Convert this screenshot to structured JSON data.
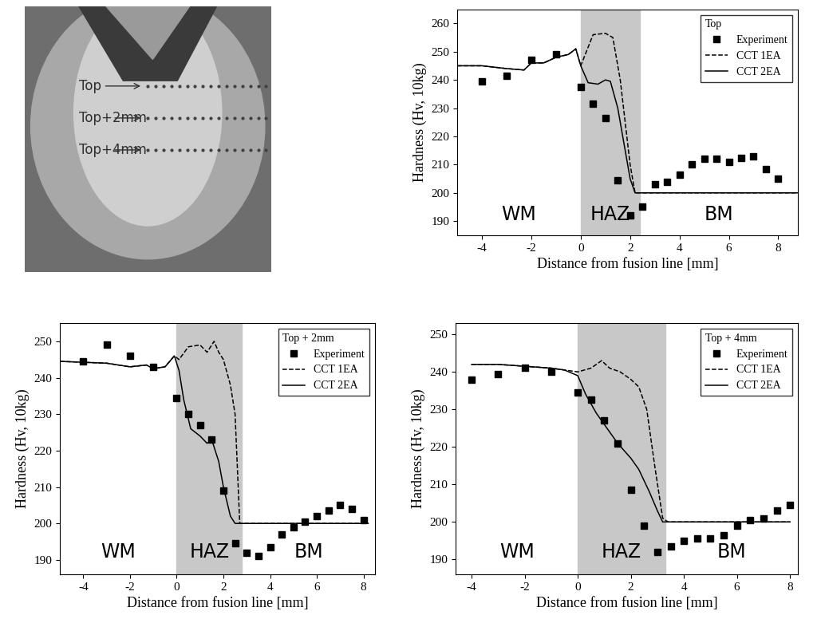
{
  "macrograph": {
    "labels": [
      "Top",
      "Top+2mm",
      "Top+4mm"
    ]
  },
  "chart_data": [
    {
      "type": "line",
      "legend_title": "Top",
      "legend": "upper right",
      "x_label": "Distance from fusion line [mm]",
      "y_label": "Hardness (Hv, 10kg)",
      "annotations": [
        "WM",
        "HAZ",
        "BM"
      ],
      "shaded_range": [
        0,
        2.4
      ],
      "xlim": [
        -5,
        8.8
      ],
      "xticks": [
        -4,
        -2,
        0,
        2,
        4,
        6,
        8
      ],
      "ylim": [
        185,
        265
      ],
      "yticks": [
        190,
        200,
        210,
        220,
        230,
        240,
        250,
        260
      ],
      "grid": false,
      "series": [
        {
          "name": "Experiment",
          "type": "scatter",
          "marker": "square",
          "color": "#000000",
          "x": [
            -4,
            -3,
            -2,
            -1,
            0,
            0.5,
            1,
            1.5,
            2,
            2.5,
            3,
            3.5,
            4,
            4.5,
            5,
            5.5,
            6,
            6.5,
            7,
            7.5,
            8
          ],
          "values": [
            239.5,
            241.5,
            247,
            249,
            237.5,
            231.5,
            226.5,
            204.5,
            192,
            195,
            203,
            204,
            206.5,
            210,
            212,
            212,
            211,
            212.5,
            213,
            208.5,
            205
          ]
        },
        {
          "name": "CCT 1EA",
          "type": "line",
          "line_style": "dashed",
          "color": "#000000",
          "x": [
            -5,
            -4,
            -3,
            -2.3,
            -2,
            -1.5,
            -1,
            -0.5,
            -0.2,
            0,
            0.5,
            1,
            1.3,
            1.6,
            2,
            2.2,
            2.4,
            8.8
          ],
          "values": [
            245,
            245,
            244,
            243.5,
            246,
            246,
            248,
            249,
            251,
            245,
            256,
            256.5,
            255,
            240,
            210,
            200,
            200,
            200
          ]
        },
        {
          "name": "CCT 2EA",
          "type": "line",
          "line_style": "solid",
          "color": "#000000",
          "x": [
            -5,
            -4,
            -3,
            -2.3,
            -2,
            -1.5,
            -1,
            -0.5,
            -0.2,
            0,
            0.3,
            0.7,
            1,
            1.2,
            1.5,
            1.8,
            2,
            2.2,
            8.8
          ],
          "values": [
            245,
            245,
            244,
            243.5,
            246,
            246,
            248,
            249,
            251,
            245,
            239,
            238.5,
            240,
            239.5,
            230,
            215,
            205,
            200,
            200
          ]
        }
      ]
    },
    {
      "type": "line",
      "legend_title": "Top + 2mm",
      "legend": "upper right",
      "x_label": "Distance from fusion line [mm]",
      "y_label": "Hardness (Hv, 10kg)",
      "annotations": [
        "WM",
        "HAZ",
        "BM"
      ],
      "shaded_range": [
        0,
        2.8
      ],
      "xlim": [
        -5,
        8.5
      ],
      "xticks": [
        -4,
        -2,
        0,
        2,
        4,
        6,
        8
      ],
      "ylim": [
        186,
        255
      ],
      "yticks": [
        190,
        200,
        210,
        220,
        230,
        240,
        250
      ],
      "grid": false,
      "series": [
        {
          "name": "Experiment",
          "type": "scatter",
          "marker": "square",
          "color": "#000000",
          "x": [
            -4,
            -3,
            -2,
            -1,
            0,
            0.5,
            1,
            1.5,
            2,
            2.5,
            3,
            3.5,
            4,
            4.5,
            5,
            5.5,
            6,
            6.5,
            7,
            7.5,
            8
          ],
          "values": [
            244.5,
            249,
            246,
            243,
            234.5,
            230,
            227,
            223,
            209,
            194.5,
            192,
            191,
            193.5,
            197,
            199,
            200.5,
            202,
            203.5,
            205,
            204,
            201
          ]
        },
        {
          "name": "CCT 1EA",
          "type": "line",
          "line_style": "dashed",
          "color": "#000000",
          "x": [
            -5,
            -3,
            -2,
            -1.3,
            -1,
            -0.5,
            -0.1,
            0.1,
            0.5,
            1,
            1.3,
            1.6,
            1.8,
            2,
            2.3,
            2.5,
            2.7,
            8.2
          ],
          "values": [
            244.5,
            244,
            243,
            243.5,
            242.5,
            243,
            246,
            245,
            248.5,
            249,
            247,
            250,
            247,
            245,
            238,
            230,
            200,
            200
          ]
        },
        {
          "name": "CCT 2EA",
          "type": "line",
          "line_style": "solid",
          "color": "#000000",
          "x": [
            -5,
            -3,
            -2,
            -1.3,
            -1,
            -0.5,
            -0.1,
            0.1,
            0.3,
            0.6,
            1,
            1.3,
            1.5,
            1.8,
            2,
            2.3,
            2.5,
            8.2
          ],
          "values": [
            244.5,
            244,
            243,
            243.5,
            242.5,
            243,
            246,
            242,
            234,
            226,
            224,
            222,
            223,
            217,
            210,
            202,
            200,
            200
          ]
        }
      ]
    },
    {
      "type": "line",
      "legend_title": "Top + 4mm",
      "legend": "upper right",
      "x_label": "Distance from fusion line [mm]",
      "y_label": "Hardness (Hv, 10kg)",
      "annotations": [
        "WM",
        "HAZ",
        "BM"
      ],
      "shaded_range": [
        0,
        3.3
      ],
      "xlim": [
        -4.6,
        8.3
      ],
      "xticks": [
        -4,
        -2,
        0,
        2,
        4,
        6,
        8
      ],
      "ylim": [
        186,
        253
      ],
      "yticks": [
        190,
        200,
        210,
        220,
        230,
        240,
        250
      ],
      "grid": false,
      "series": [
        {
          "name": "Experiment",
          "type": "scatter",
          "marker": "square",
          "color": "#000000",
          "x": [
            -4,
            -3,
            -2,
            -1,
            0,
            0.5,
            1,
            1.5,
            2,
            2.5,
            3,
            3.5,
            4,
            4.5,
            5,
            5.5,
            6,
            6.5,
            7,
            7.5,
            8
          ],
          "values": [
            238,
            239.5,
            241,
            240,
            234.5,
            232.5,
            227,
            221,
            208.5,
            199,
            192,
            193.5,
            195,
            195.5,
            195.5,
            196.5,
            199,
            200.5,
            201,
            203,
            204.5
          ]
        },
        {
          "name": "CCT 1EA",
          "type": "line",
          "line_style": "dashed",
          "color": "#000000",
          "x": [
            -4,
            -3,
            -2,
            -1,
            -0.5,
            0,
            0.5,
            0.9,
            1.2,
            1.6,
            2,
            2.3,
            2.6,
            2.9,
            3.2,
            3.4,
            8
          ],
          "values": [
            242,
            242,
            241.5,
            241,
            240.5,
            240,
            241,
            243,
            241,
            240,
            238,
            236,
            230,
            215,
            201,
            200,
            200
          ]
        },
        {
          "name": "CCT 2EA",
          "type": "line",
          "line_style": "solid",
          "color": "#000000",
          "x": [
            -4,
            -3,
            -2,
            -1,
            -0.5,
            0,
            0.3,
            0.7,
            1,
            1.5,
            2,
            2.3,
            2.7,
            3,
            3.2,
            8
          ],
          "values": [
            242,
            242,
            241.5,
            241,
            240.5,
            239,
            234,
            229,
            226,
            221,
            217,
            214,
            208,
            203,
            200,
            200
          ]
        }
      ]
    }
  ]
}
